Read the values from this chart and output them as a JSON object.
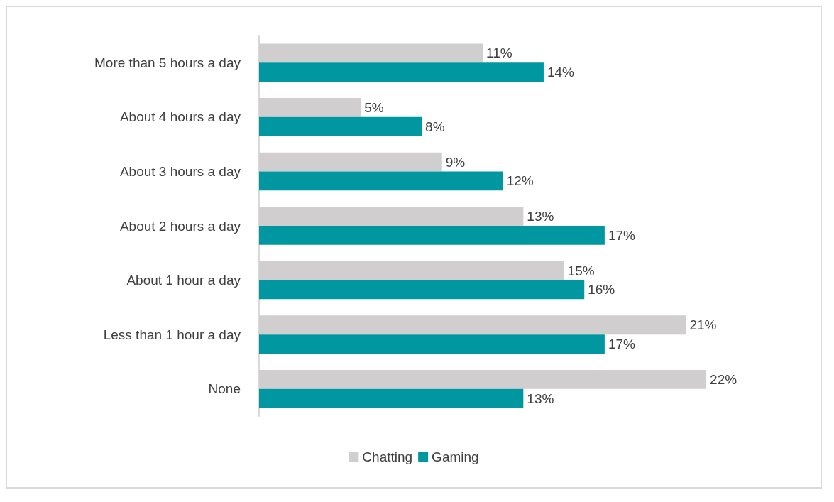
{
  "chart_data": {
    "type": "bar",
    "orientation": "horizontal",
    "categories": [
      "More than 5 hours a day",
      "About 4 hours a day",
      "About 3 hours a day",
      "About 2 hours a day",
      "About 1 hour a day",
      "Less than 1 hour a day",
      "None"
    ],
    "series": [
      {
        "name": "Chatting",
        "color": "#d0cece",
        "values": [
          11,
          5,
          9,
          13,
          15,
          21,
          22
        ],
        "value_labels": [
          "11%",
          "5%",
          "9%",
          "13%",
          "15%",
          "21%",
          "22%"
        ]
      },
      {
        "name": "Gaming",
        "color": "#0097a1",
        "values": [
          14,
          8,
          12,
          17,
          16,
          17,
          13
        ],
        "value_labels": [
          "14%",
          "8%",
          "12%",
          "17%",
          "16%",
          "17%",
          "13%"
        ]
      }
    ],
    "legend": "bottom",
    "grid": false
  }
}
